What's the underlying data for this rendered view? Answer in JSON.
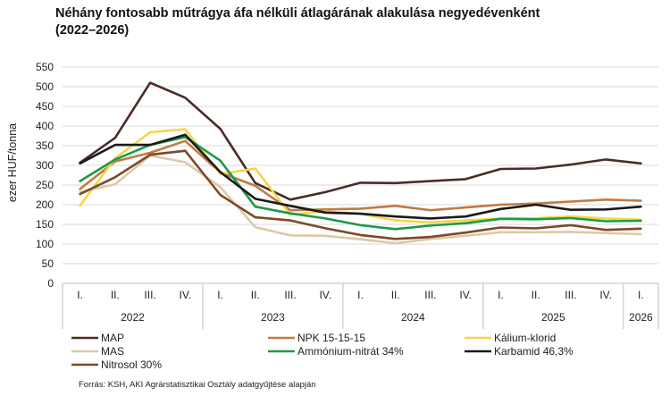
{
  "title_line1": "Néhány fontosabb műtrágya áfa nélküli átlagárának alakulása negyedévenként",
  "title_line2": "(2022–2026)",
  "source": "Forrás: KSH, AKI Agrárstatisztikai Osztály adatgyűjtése alapján",
  "chart_data": {
    "type": "line",
    "ylabel": "ezer HUF/tonna",
    "ylim": [
      0,
      550
    ],
    "yticks": [
      0,
      50,
      100,
      150,
      200,
      250,
      300,
      350,
      400,
      450,
      500,
      550
    ],
    "categories": [
      "I.",
      "II.",
      "III.",
      "IV.",
      "I.",
      "II.",
      "III.",
      "IV.",
      "I.",
      "II.",
      "III.",
      "IV.",
      "I.",
      "II.",
      "III.",
      "IV.",
      "I."
    ],
    "years": [
      {
        "label": "2022",
        "count": 4
      },
      {
        "label": "2023",
        "count": 4
      },
      {
        "label": "2024",
        "count": 4
      },
      {
        "label": "2025",
        "count": 4
      },
      {
        "label": "2026",
        "count": 1
      }
    ],
    "grid": true,
    "legend_position": "bottom",
    "series": [
      {
        "name": "MAP",
        "color": "#4a2c26",
        "values": [
          307,
          370,
          510,
          472,
          393,
          255,
          213,
          232,
          256,
          255,
          260,
          265,
          291,
          292,
          302,
          315,
          305
        ]
      },
      {
        "name": "NPK 15-15-15",
        "color": "#c07a45",
        "values": [
          240,
          310,
          332,
          362,
          282,
          248,
          186,
          188,
          190,
          197,
          186,
          193,
          200,
          203,
          208,
          213,
          210
        ]
      },
      {
        "name": "Kálium-klorid",
        "color": "#f5d547",
        "values": [
          198,
          318,
          384,
          392,
          278,
          292,
          175,
          183,
          177,
          160,
          155,
          160,
          165,
          166,
          170,
          165,
          162
        ]
      },
      {
        "name": "MAS",
        "color": "#dcc9a8",
        "values": [
          232,
          252,
          325,
          308,
          245,
          143,
          122,
          121,
          112,
          102,
          113,
          121,
          130,
          130,
          131,
          128,
          125
        ]
      },
      {
        "name": "Ammónium-nitrát 34%",
        "color": "#1f9a46",
        "values": [
          260,
          315,
          352,
          372,
          312,
          195,
          178,
          165,
          148,
          138,
          147,
          153,
          164,
          163,
          166,
          158,
          159
        ]
      },
      {
        "name": "Karbamid 46,3%",
        "color": "#1a1a1a",
        "values": [
          305,
          352,
          352,
          378,
          283,
          215,
          197,
          180,
          177,
          170,
          165,
          170,
          189,
          200,
          187,
          188,
          195
        ]
      },
      {
        "name": "Nitrosol 30%",
        "color": "#7b4a26",
        "values": [
          227,
          270,
          327,
          337,
          225,
          168,
          160,
          140,
          123,
          113,
          118,
          129,
          142,
          140,
          148,
          136,
          139
        ]
      }
    ]
  }
}
